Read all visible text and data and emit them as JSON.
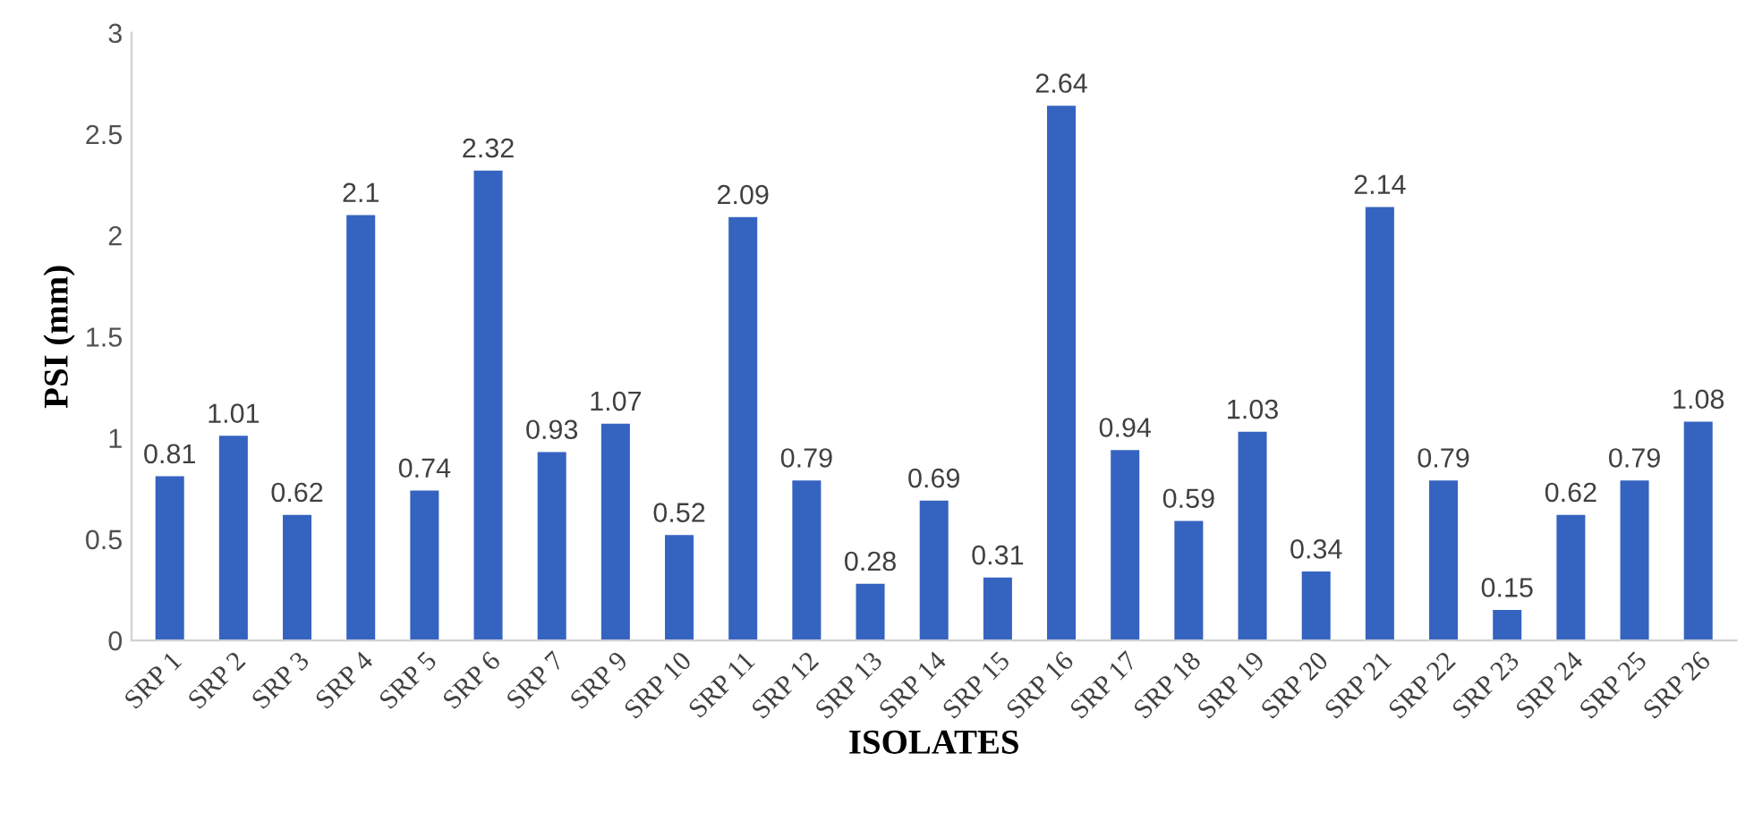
{
  "chart_data": {
    "type": "bar",
    "xlabel": "ISOLATES",
    "ylabel": "PSI (mm)",
    "categories": [
      "SRP 1",
      "SRP 2",
      "SRP 3",
      "SRP 4",
      "SRP 5",
      "SRP 6",
      "SRP 7",
      "SRP 9",
      "SRP 10",
      "SRP 11",
      "SRP 12",
      "SRP 13",
      "SRP 14",
      "SRP 15",
      "SRP 16",
      "SRP 17",
      "SRP 18",
      "SRP 19",
      "SRP 20",
      "SRP 21",
      "SRP 22",
      "SRP 23",
      "SRP 24",
      "SRP 25",
      "SRP 26"
    ],
    "values": [
      0.81,
      1.01,
      0.62,
      2.1,
      0.74,
      2.32,
      0.93,
      1.07,
      0.52,
      2.09,
      0.79,
      0.28,
      0.69,
      0.31,
      2.64,
      0.94,
      0.59,
      1.03,
      0.34,
      2.14,
      0.79,
      0.15,
      0.62,
      0.79,
      1.08
    ],
    "color": "#3563c0",
    "ylim": [
      0,
      3
    ],
    "yticks": [
      0,
      0.5,
      1,
      1.5,
      2,
      2.5,
      3
    ],
    "data_labels": true,
    "grid": false
  }
}
